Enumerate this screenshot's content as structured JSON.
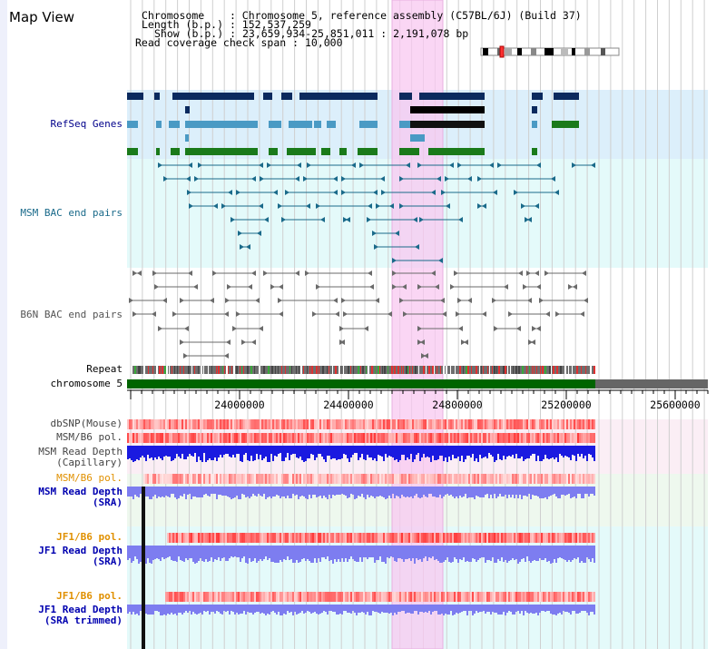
{
  "view": {
    "title": "Map View",
    "chromosome_label": "Chromosome",
    "chromosome_value": "Chromosome 5, reference assembly (C57BL/6J) (Build 37)",
    "length_label": "Length (b.p.)",
    "length_value": "152,537,259",
    "show_label": "Show (b.p.)",
    "show_value": "23,659,934-25,851,011 : 2,191,078 bp",
    "coverage_label": "Read coverage check span",
    "coverage_value": "10,000"
  },
  "tracks": {
    "refseq": "RefSeq Genes",
    "msm_bac": "MSM BAC end pairs",
    "b6n_bac": "B6N BAC end pairs",
    "repeat": "Repeat",
    "chromosome": "chromosome 5",
    "dbsnp": "dbSNP(Mouse)",
    "msm_b6_pol_1": "MSM/B6 pol.",
    "msm_depth_cap_1": "MSM Read Depth",
    "msm_depth_cap_2": "(Capillary)",
    "msm_b6_pol_2": "MSM/B6 pol.",
    "msm_depth_sra_1": "MSM Read Depth",
    "msm_depth_sra_2": "(SRA)",
    "jf1_b6_pol_1": "JF1/B6 pol.",
    "jf1_depth_1": "JF1 Read Depth",
    "jf1_depth_2": "(SRA)",
    "jf1_b6_pol_2": "JF1/B6 pol.",
    "jf1_trim_1": "JF1 Read Depth",
    "jf1_trim_2": "(SRA trimmed)"
  },
  "axis": {
    "ticks": [
      "24000000",
      "24400000",
      "24800000",
      "25200000",
      "25600000"
    ]
  },
  "colors": {
    "refseq_label": "#00008b",
    "msm_bac_label": "#1a6a8a",
    "b6n_bac_label": "#555555",
    "pol_label": "#e09000",
    "depth_label": "#0000b0",
    "highlight": "#f8c8f0",
    "refseq_bg": "#dceffb",
    "msm_bg": "#e4fafa",
    "depth_blue": "#1a1ae0",
    "depth_light": "#7d7df0",
    "snp_red": "#f04040",
    "chromosome_green": "#006400"
  }
}
